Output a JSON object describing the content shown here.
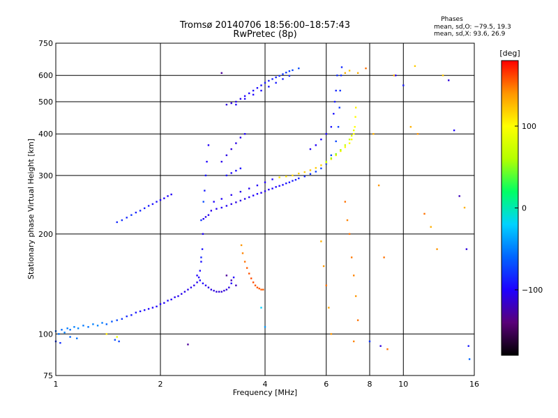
{
  "figure": {
    "title_line1": "Tromsø 20140706 18:56:00–18:57:43",
    "title_line2": "RwPretec (8p)",
    "phases": {
      "heading": "Phases",
      "line_o": "mean, sd,O: −79.5, 19.3",
      "line_x": "mean, sd,X:  93.6, 26.9"
    },
    "colorbar": {
      "unit": "[deg]",
      "ticks": [
        {
          "value": 100,
          "label": "100"
        },
        {
          "value": 0,
          "label": "0"
        },
        {
          "value": -100,
          "label": "−100"
        }
      ],
      "range": [
        -180,
        180
      ],
      "colors": [
        "#000000",
        "#5a0078",
        "#1e00ff",
        "#0064ff",
        "#00d2ff",
        "#00ff64",
        "#b4ff00",
        "#ffff00",
        "#ff9600",
        "#ff0000"
      ]
    }
  },
  "chart_data": {
    "type": "scatter",
    "title": "Tromsø 20140706 18:56:00–18:57:43",
    "subtitle": "RwPretec (8p)",
    "xlabel": "Frequency [MHz]",
    "ylabel": "Stationary phase Virtual Height [km]",
    "xscale": "log",
    "yscale": "log",
    "xlim": [
      1,
      16
    ],
    "ylim": [
      75,
      750
    ],
    "grid": true,
    "xticks": [
      {
        "value": 1,
        "label": "1"
      },
      {
        "value": 2,
        "label": "2"
      },
      {
        "value": 4,
        "label": "4"
      },
      {
        "value": 6,
        "label": "6"
      },
      {
        "value": 8,
        "label": "8"
      },
      {
        "value": 10,
        "label": "10"
      },
      {
        "value": 16,
        "label": "16"
      }
    ],
    "yticks": [
      {
        "value": 75,
        "label": "75"
      },
      {
        "value": 100,
        "label": "100"
      },
      {
        "value": 200,
        "label": "200"
      },
      {
        "value": 300,
        "label": "300"
      },
      {
        "value": 400,
        "label": "400"
      },
      {
        "value": 500,
        "label": "500"
      },
      {
        "value": 600,
        "label": "600"
      },
      {
        "value": 750,
        "label": "750"
      }
    ],
    "color_by": "phase [deg]",
    "points": [
      [
        1.0,
        102,
        -60
      ],
      [
        1.02,
        100,
        -55
      ],
      [
        1.04,
        103,
        -58
      ],
      [
        1.06,
        101,
        -50
      ],
      [
        1.08,
        104,
        -52
      ],
      [
        1.1,
        103,
        -55
      ],
      [
        1.13,
        105,
        -50
      ],
      [
        1.16,
        104,
        -48
      ],
      [
        1.2,
        106,
        -52
      ],
      [
        1.24,
        105,
        -55
      ],
      [
        1.28,
        107,
        -50
      ],
      [
        1.32,
        106,
        -48
      ],
      [
        1.36,
        108,
        -52
      ],
      [
        1.4,
        107,
        -60
      ],
      [
        1.45,
        109,
        -65
      ],
      [
        1.5,
        110,
        -70
      ],
      [
        1.55,
        111,
        -78
      ],
      [
        1.6,
        113,
        -85
      ],
      [
        1.65,
        114,
        -90
      ],
      [
        1.7,
        116,
        -92
      ],
      [
        1.75,
        117,
        -95
      ],
      [
        1.8,
        118,
        -95
      ],
      [
        1.85,
        119,
        -98
      ],
      [
        1.9,
        120,
        -100
      ],
      [
        1.95,
        121,
        -100
      ],
      [
        2.0,
        123,
        -100
      ],
      [
        2.05,
        124,
        -102
      ],
      [
        2.1,
        126,
        -100
      ],
      [
        2.15,
        127,
        -102
      ],
      [
        2.2,
        129,
        -104
      ],
      [
        2.25,
        130,
        -104
      ],
      [
        2.3,
        132,
        -105
      ],
      [
        2.35,
        134,
        -106
      ],
      [
        2.4,
        136,
        -106
      ],
      [
        2.45,
        138,
        -106
      ],
      [
        2.5,
        140,
        -106
      ],
      [
        2.55,
        143,
        -104
      ],
      [
        2.58,
        148,
        -100
      ],
      [
        2.6,
        155,
        -98
      ],
      [
        2.62,
        165,
        -95
      ],
      [
        2.64,
        180,
        -95
      ],
      [
        2.65,
        200,
        -100
      ],
      [
        2.66,
        222,
        -104
      ],
      [
        2.7,
        225,
        -106
      ],
      [
        2.75,
        228,
        -104
      ],
      [
        1.0,
        95,
        -80
      ],
      [
        1.03,
        94,
        -82
      ],
      [
        1.1,
        98,
        -60
      ],
      [
        1.15,
        97,
        -55
      ],
      [
        1.48,
        96,
        -70
      ],
      [
        1.52,
        95,
        -72
      ],
      [
        1.5,
        217,
        -85
      ],
      [
        1.55,
        220,
        -82
      ],
      [
        1.6,
        224,
        -85
      ],
      [
        1.65,
        228,
        -80
      ],
      [
        1.7,
        232,
        -88
      ],
      [
        1.75,
        235,
        -85
      ],
      [
        1.8,
        239,
        -88
      ],
      [
        1.85,
        243,
        -90
      ],
      [
        1.9,
        246,
        -95
      ],
      [
        1.95,
        250,
        -95
      ],
      [
        2.0,
        253,
        -100
      ],
      [
        2.05,
        256,
        -100
      ],
      [
        2.1,
        260,
        -100
      ],
      [
        2.15,
        263,
        -102
      ],
      [
        2.55,
        150,
        -100
      ],
      [
        2.6,
        145,
        -98
      ],
      [
        2.65,
        142,
        -100
      ],
      [
        2.7,
        140,
        -104
      ],
      [
        2.75,
        138,
        -108
      ],
      [
        2.8,
        136,
        -108
      ],
      [
        2.85,
        135,
        -110
      ],
      [
        2.9,
        134,
        -110
      ],
      [
        2.95,
        134,
        -112
      ],
      [
        3.0,
        134,
        -112
      ],
      [
        3.05,
        135,
        -112
      ],
      [
        3.1,
        136,
        -110
      ],
      [
        3.15,
        138,
        -108
      ],
      [
        3.2,
        142,
        -100
      ],
      [
        3.25,
        148,
        -100
      ],
      [
        2.62,
        170,
        -85
      ],
      [
        2.66,
        250,
        -70
      ],
      [
        2.68,
        270,
        -90
      ],
      [
        2.7,
        300,
        -92
      ],
      [
        2.72,
        330,
        -100
      ],
      [
        2.75,
        370,
        -102
      ],
      [
        2.62,
        220,
        -80
      ],
      [
        2.8,
        235,
        -106
      ],
      [
        2.9,
        238,
        -104
      ],
      [
        3.0,
        240,
        -102
      ],
      [
        3.1,
        243,
        -104
      ],
      [
        3.2,
        246,
        -106
      ],
      [
        3.3,
        249,
        -108
      ],
      [
        3.4,
        252,
        -108
      ],
      [
        3.5,
        255,
        -106
      ],
      [
        3.6,
        258,
        -104
      ],
      [
        3.7,
        261,
        -100
      ],
      [
        3.8,
        264,
        -100
      ],
      [
        3.9,
        266,
        -102
      ],
      [
        4.0,
        269,
        -104
      ],
      [
        4.1,
        272,
        -102
      ],
      [
        4.2,
        274,
        -100
      ],
      [
        4.3,
        277,
        -98
      ],
      [
        4.4,
        279,
        -98
      ],
      [
        4.5,
        281,
        -96
      ],
      [
        4.6,
        284,
        -94
      ],
      [
        4.7,
        286,
        -92
      ],
      [
        4.8,
        289,
        -90
      ],
      [
        4.9,
        291,
        -90
      ],
      [
        5.0,
        294,
        -88
      ],
      [
        5.2,
        298,
        -85
      ],
      [
        5.4,
        303,
        -80
      ],
      [
        5.6,
        308,
        -76
      ],
      [
        5.8,
        315,
        -72
      ],
      [
        6.0,
        325,
        -70
      ],
      [
        6.2,
        345,
        -70
      ],
      [
        6.4,
        380,
        -72
      ],
      [
        6.5,
        420,
        -75
      ],
      [
        6.55,
        480,
        -78
      ],
      [
        6.58,
        540,
        -80
      ],
      [
        6.62,
        600,
        -82
      ],
      [
        6.65,
        635,
        -84
      ],
      [
        6.45,
        600,
        -82
      ],
      [
        6.4,
        540,
        -85
      ],
      [
        6.35,
        500,
        -90
      ],
      [
        6.3,
        460,
        -95
      ],
      [
        6.2,
        420,
        -95
      ],
      [
        6.0,
        400,
        -98
      ],
      [
        5.8,
        385,
        -100
      ],
      [
        5.6,
        370,
        -102
      ],
      [
        5.4,
        360,
        -104
      ],
      [
        2.85,
        250,
        -100
      ],
      [
        3.0,
        255,
        -102
      ],
      [
        3.2,
        262,
        -104
      ],
      [
        3.4,
        268,
        -106
      ],
      [
        3.6,
        274,
        -104
      ],
      [
        3.8,
        280,
        -102
      ],
      [
        4.0,
        286,
        -100
      ],
      [
        4.2,
        292,
        -98
      ],
      [
        4.4,
        296,
        110
      ],
      [
        4.6,
        298,
        112
      ],
      [
        4.8,
        300,
        115
      ],
      [
        5.0,
        304,
        118
      ],
      [
        5.2,
        307,
        120
      ],
      [
        5.4,
        311,
        122
      ],
      [
        5.6,
        316,
        120
      ],
      [
        5.8,
        322,
        118
      ],
      [
        6.0,
        328,
        115
      ],
      [
        6.2,
        336,
        112
      ],
      [
        6.4,
        345,
        108
      ],
      [
        6.6,
        355,
        105
      ],
      [
        6.8,
        365,
        102
      ],
      [
        7.0,
        375,
        100
      ],
      [
        7.1,
        385,
        98
      ],
      [
        7.2,
        400,
        98
      ],
      [
        7.25,
        420,
        100
      ],
      [
        7.28,
        450,
        102
      ],
      [
        7.3,
        480,
        105
      ],
      [
        6.0,
        330,
        60
      ],
      [
        6.2,
        338,
        55
      ],
      [
        6.4,
        348,
        50
      ],
      [
        6.6,
        358,
        60
      ],
      [
        6.8,
        370,
        70
      ],
      [
        7.0,
        385,
        75
      ],
      [
        7.1,
        395,
        80
      ],
      [
        7.2,
        410,
        85
      ],
      [
        3.1,
        300,
        -95
      ],
      [
        3.2,
        305,
        -98
      ],
      [
        3.3,
        310,
        -96
      ],
      [
        3.4,
        315,
        -95
      ],
      [
        3.0,
        330,
        -105
      ],
      [
        3.1,
        345,
        -108
      ],
      [
        3.2,
        360,
        -110
      ],
      [
        3.3,
        375,
        -108
      ],
      [
        3.4,
        390,
        -105
      ],
      [
        3.5,
        400,
        -100
      ],
      [
        3.1,
        490,
        -110
      ],
      [
        3.2,
        495,
        -108
      ],
      [
        3.3,
        500,
        -106
      ],
      [
        3.4,
        510,
        -104
      ],
      [
        3.5,
        520,
        -100
      ],
      [
        3.6,
        530,
        -98
      ],
      [
        3.7,
        540,
        -98
      ],
      [
        3.8,
        550,
        -96
      ],
      [
        3.9,
        560,
        -94
      ],
      [
        4.0,
        570,
        -92
      ],
      [
        4.1,
        578,
        -90
      ],
      [
        4.2,
        585,
        -88
      ],
      [
        4.3,
        592,
        -86
      ],
      [
        4.4,
        598,
        -84
      ],
      [
        4.5,
        605,
        -80
      ],
      [
        4.6,
        612,
        -78
      ],
      [
        4.7,
        618,
        -75
      ],
      [
        4.8,
        622,
        -72
      ],
      [
        5.0,
        630,
        -70
      ],
      [
        3.3,
        490,
        -100
      ],
      [
        3.5,
        510,
        -100
      ],
      [
        3.7,
        525,
        -98
      ],
      [
        3.9,
        540,
        -96
      ],
      [
        4.1,
        555,
        -94
      ],
      [
        4.3,
        570,
        -90
      ],
      [
        4.5,
        585,
        -88
      ],
      [
        4.7,
        598,
        -84
      ],
      [
        3.5,
        165,
        150
      ],
      [
        3.55,
        158,
        155
      ],
      [
        3.6,
        152,
        158
      ],
      [
        3.65,
        147,
        160
      ],
      [
        3.7,
        143,
        160
      ],
      [
        3.75,
        140,
        158
      ],
      [
        3.8,
        138,
        158
      ],
      [
        3.85,
        137,
        156
      ],
      [
        3.9,
        136,
        155
      ],
      [
        3.95,
        136,
        155
      ],
      [
        3.45,
        175,
        145
      ],
      [
        3.42,
        185,
        140
      ],
      [
        3.3,
        140,
        -120
      ],
      [
        3.2,
        145,
        -125
      ],
      [
        3.1,
        150,
        -130
      ],
      [
        5.8,
        190,
        130
      ],
      [
        5.9,
        160,
        140
      ],
      [
        6.0,
        140,
        150
      ],
      [
        6.1,
        120,
        135
      ],
      [
        6.2,
        100,
        140
      ],
      [
        6.8,
        250,
        150
      ],
      [
        6.9,
        220,
        145
      ],
      [
        7.0,
        200,
        150
      ],
      [
        7.1,
        170,
        148
      ],
      [
        7.2,
        150,
        145
      ],
      [
        7.3,
        130,
        140
      ],
      [
        7.4,
        110,
        150
      ],
      [
        7.2,
        95,
        145
      ],
      [
        6.8,
        610,
        130
      ],
      [
        7.0,
        620,
        120
      ],
      [
        7.4,
        610,
        130
      ],
      [
        7.8,
        630,
        150
      ],
      [
        8.2,
        400,
        130
      ],
      [
        8.5,
        280,
        140
      ],
      [
        8.8,
        170,
        150
      ],
      [
        9.0,
        90,
        150
      ],
      [
        9.5,
        600,
        -100
      ],
      [
        10.0,
        560,
        -90
      ],
      [
        10.5,
        420,
        130
      ],
      [
        11.0,
        400,
        140
      ],
      [
        11.5,
        230,
        150
      ],
      [
        12.0,
        210,
        130
      ],
      [
        12.5,
        180,
        140
      ],
      [
        13.0,
        600,
        120
      ],
      [
        13.5,
        580,
        -110
      ],
      [
        14.0,
        410,
        -100
      ],
      [
        14.5,
        260,
        -120
      ],
      [
        15.0,
        240,
        130
      ],
      [
        15.2,
        180,
        -110
      ],
      [
        15.4,
        92,
        -90
      ],
      [
        15.5,
        84,
        -60
      ],
      [
        8.0,
        95,
        -80
      ],
      [
        8.6,
        92,
        -110
      ],
      [
        9.4,
        600,
        130
      ],
      [
        10.8,
        640,
        120
      ],
      [
        1.4,
        100,
        110
      ],
      [
        1.5,
        98,
        90
      ],
      [
        2.4,
        93,
        -130
      ],
      [
        3.0,
        610,
        -130
      ],
      [
        3.9,
        120,
        -20
      ],
      [
        4.0,
        105,
        -40
      ]
    ]
  }
}
